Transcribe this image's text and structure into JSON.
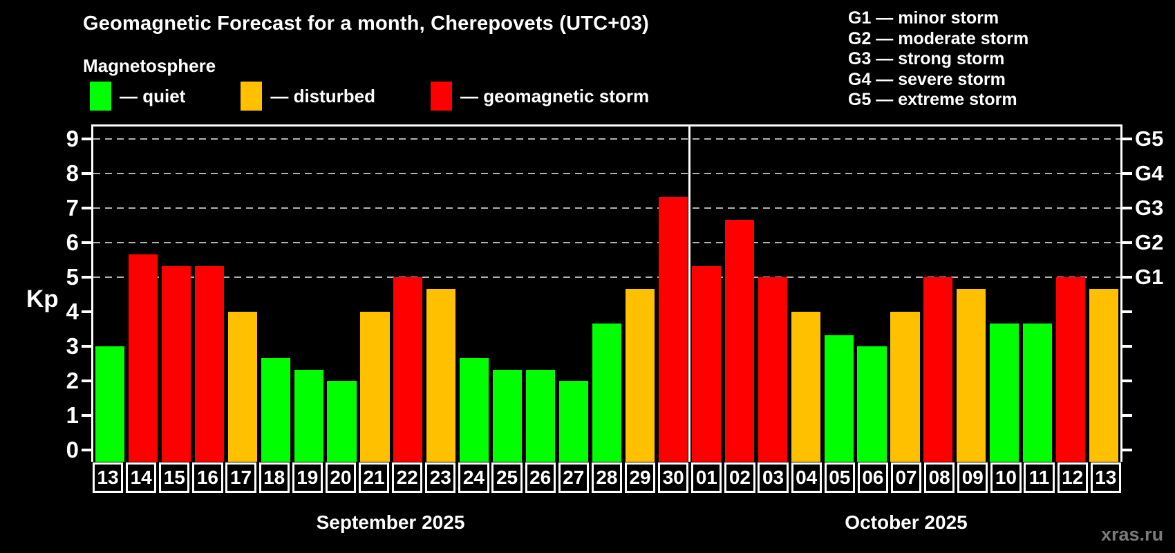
{
  "title": "Geomagnetic Forecast for a month, Cherepovets (UTC+03)",
  "subtitle": "Magnetosphere",
  "legend": {
    "items": [
      {
        "status": "quiet",
        "label": "— quiet",
        "color": "#00ff00"
      },
      {
        "status": "disturbed",
        "label": "— disturbed",
        "color": "#ffc000"
      },
      {
        "status": "storm",
        "label": "— geomagnetic storm",
        "color": "#ff0000"
      }
    ]
  },
  "g_legend": {
    "items": [
      "G1 — minor storm",
      "G2 — moderate storm",
      "G3 — strong storm",
      "G4 — severe storm",
      "G5 — extreme storm"
    ]
  },
  "chart_data": {
    "type": "bar",
    "title": "Geomagnetic Forecast for a month, Cherepovets (UTC+03)",
    "xlabel": "",
    "ylabel": "Kp",
    "ylim": [
      0,
      9.45
    ],
    "grid": "dashed horizontal lines at Kp 5-9 only",
    "y_ticks": [
      0,
      1,
      2,
      3,
      4,
      5,
      6,
      7,
      8,
      9
    ],
    "gridlines_at": [
      5,
      6,
      7,
      8,
      9
    ],
    "right_axis_ticks": [
      0,
      1,
      2,
      3,
      4,
      5,
      6,
      7,
      8,
      9
    ],
    "right_axis_labels": [
      {
        "value": 5,
        "label": "G1"
      },
      {
        "value": 6,
        "label": "G2"
      },
      {
        "value": 7,
        "label": "G3"
      },
      {
        "value": 8,
        "label": "G4"
      },
      {
        "value": 9,
        "label": "G5"
      }
    ],
    "months": [
      {
        "label": "September 2025",
        "bars": [
          {
            "day": "13",
            "value": 3,
            "status": "quiet"
          },
          {
            "day": "14",
            "value": 5.67,
            "status": "storm"
          },
          {
            "day": "15",
            "value": 5.33,
            "status": "storm"
          },
          {
            "day": "16",
            "value": 5.33,
            "status": "storm"
          },
          {
            "day": "17",
            "value": 4,
            "status": "disturbed"
          },
          {
            "day": "18",
            "value": 2.67,
            "status": "quiet"
          },
          {
            "day": "19",
            "value": 2.33,
            "status": "quiet"
          },
          {
            "day": "20",
            "value": 2,
            "status": "quiet"
          },
          {
            "day": "21",
            "value": 4,
            "status": "disturbed"
          },
          {
            "day": "22",
            "value": 5,
            "status": "storm"
          },
          {
            "day": "23",
            "value": 4.67,
            "status": "disturbed"
          },
          {
            "day": "24",
            "value": 2.67,
            "status": "quiet"
          },
          {
            "day": "25",
            "value": 2.33,
            "status": "quiet"
          },
          {
            "day": "26",
            "value": 2.33,
            "status": "quiet"
          },
          {
            "day": "27",
            "value": 2,
            "status": "quiet"
          },
          {
            "day": "28",
            "value": 3.67,
            "status": "quiet"
          },
          {
            "day": "29",
            "value": 4.67,
            "status": "disturbed"
          },
          {
            "day": "30",
            "value": 7.33,
            "status": "storm"
          }
        ]
      },
      {
        "label": "October 2025",
        "bars": [
          {
            "day": "01",
            "value": 5.33,
            "status": "storm"
          },
          {
            "day": "02",
            "value": 6.67,
            "status": "storm"
          },
          {
            "day": "03",
            "value": 5,
            "status": "storm"
          },
          {
            "day": "04",
            "value": 4,
            "status": "disturbed"
          },
          {
            "day": "05",
            "value": 3.33,
            "status": "quiet"
          },
          {
            "day": "06",
            "value": 3,
            "status": "quiet"
          },
          {
            "day": "07",
            "value": 4,
            "status": "disturbed"
          },
          {
            "day": "08",
            "value": 5,
            "status": "storm"
          },
          {
            "day": "09",
            "value": 4.67,
            "status": "disturbed"
          },
          {
            "day": "10",
            "value": 3.67,
            "status": "quiet"
          },
          {
            "day": "11",
            "value": 3.67,
            "status": "quiet"
          },
          {
            "day": "12",
            "value": 5,
            "status": "storm"
          },
          {
            "day": "13",
            "value": 4.67,
            "status": "disturbed"
          }
        ]
      }
    ]
  },
  "colors": {
    "quiet": "#00ff00",
    "disturbed": "#ffc000",
    "storm": "#ff0000",
    "grid": "#b3b3b3",
    "frame": "#ffffff",
    "text": "#ffffff",
    "background": "#000000",
    "watermark": "#7a7a7a"
  },
  "watermark": "xras.ru"
}
